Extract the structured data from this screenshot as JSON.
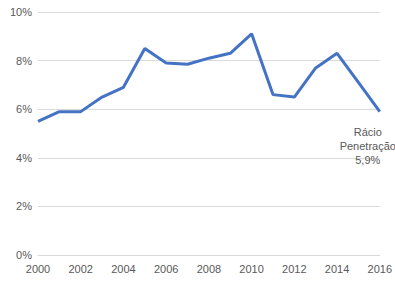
{
  "chart_data": {
    "type": "line",
    "x": [
      2000,
      2001,
      2002,
      2003,
      2004,
      2005,
      2006,
      2007,
      2008,
      2009,
      2010,
      2011,
      2012,
      2013,
      2014,
      2015,
      2016
    ],
    "values": [
      5.5,
      5.9,
      5.9,
      6.5,
      6.9,
      8.5,
      7.9,
      7.85,
      8.1,
      8.3,
      9.1,
      6.6,
      6.5,
      7.7,
      8.3,
      7.1,
      5.9
    ],
    "color": "#4472c4",
    "xlim": [
      2000,
      2016
    ],
    "xticks": [
      2000,
      2002,
      2004,
      2006,
      2008,
      2010,
      2012,
      2014,
      2016
    ],
    "ylim": [
      0,
      10
    ],
    "yticks": [
      {
        "value": 0,
        "label": "0%"
      },
      {
        "value": 2,
        "label": "2%"
      },
      {
        "value": 4,
        "label": "4%"
      },
      {
        "value": 6,
        "label": "6%"
      },
      {
        "value": 8,
        "label": "8%"
      },
      {
        "value": 10,
        "label": "10%"
      }
    ],
    "grid": true,
    "annotation": {
      "lines": [
        "Rácio",
        "Penetração",
        "5,9%"
      ],
      "x": 2016,
      "y": 5.9
    }
  }
}
